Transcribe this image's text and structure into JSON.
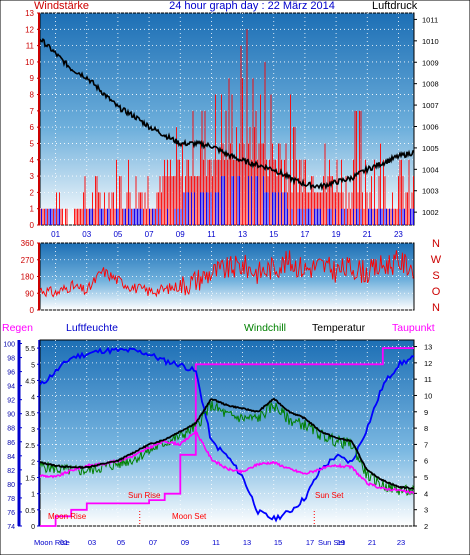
{
  "header": {
    "left_label": "Windstärke",
    "title": "24 hour graph day : 22 März 2014",
    "right_label": "Luftdruck"
  },
  "colors": {
    "wind": "#ff0000",
    "gust": "#ff0000",
    "wind_low": "#0000ff",
    "pressure": "#000000",
    "direction": "#ff0000",
    "humidity": "#0000ff",
    "windchill": "#008000",
    "temperature": "#000000",
    "dewpoint": "#ff00ff",
    "rain": "#ff00ff",
    "frame": "#000000",
    "left_axis": "#cc0000",
    "mid_axis": "#cc0000",
    "bottom_axis": "#0000cc"
  },
  "chart_data": [
    {
      "type": "area",
      "x_ticks": [
        "01",
        "03",
        "05",
        "07",
        "09",
        "11",
        "13",
        "15",
        "17",
        "19",
        "21",
        "23"
      ],
      "y_left_ticks": [
        "0",
        "1",
        "2",
        "3",
        "4",
        "5",
        "6",
        "7",
        "8",
        "9",
        "10",
        "11",
        "12",
        "13"
      ],
      "y_right_ticks": [
        "1002",
        "1003",
        "1004",
        "1005",
        "1006",
        "1007",
        "1008",
        "1009",
        "1010",
        "1011"
      ],
      "ylim_left": [
        0,
        13
      ],
      "ylim_right": [
        1001.4,
        1011.3
      ],
      "pressure": {
        "x": [
          0,
          1,
          2,
          3,
          4,
          5,
          6,
          7,
          8,
          9,
          10,
          11,
          12,
          13,
          14,
          15,
          16,
          17,
          18,
          19,
          20,
          21,
          22,
          23,
          24
        ],
        "values": [
          1010.1,
          1009.4,
          1008.7,
          1008.3,
          1007.6,
          1006.9,
          1006.5,
          1006.0,
          1005.6,
          1005.2,
          1005.2,
          1005.1,
          1004.7,
          1004.4,
          1004.2,
          1004.0,
          1003.6,
          1003.3,
          1003.2,
          1003.4,
          1003.6,
          1004.0,
          1004.3,
          1004.6,
          1004.8
        ]
      },
      "wind": {
        "x": [
          0,
          1,
          2,
          3,
          4,
          5,
          6,
          7,
          8,
          9,
          10,
          11,
          12,
          13,
          14,
          15,
          16,
          17,
          18,
          19,
          20,
          21,
          22,
          23,
          24
        ],
        "low": [
          1,
          1,
          0,
          1,
          1,
          1,
          1,
          1,
          2,
          2,
          3,
          3,
          4,
          4,
          4,
          3,
          2,
          2,
          2,
          2,
          1,
          1,
          1,
          1,
          1
        ],
        "high": [
          2,
          2,
          2,
          3,
          4,
          5,
          5,
          5,
          5,
          6,
          8,
          9,
          10,
          13,
          12,
          11,
          9,
          7,
          6,
          5,
          6,
          11,
          6,
          5,
          4
        ]
      }
    },
    {
      "type": "line",
      "y_left_ticks": [
        "0",
        "90",
        "180",
        "270",
        "360"
      ],
      "y_right_ticks": [
        "N",
        "W",
        "S",
        "O",
        "N"
      ],
      "ylim": [
        0,
        360
      ],
      "direction": {
        "x": [
          0,
          1,
          2,
          3,
          4,
          5,
          6,
          7,
          8,
          9,
          10,
          11,
          12,
          13,
          14,
          15,
          16,
          17,
          18,
          19,
          20,
          21,
          22,
          23,
          24
        ],
        "values": [
          110,
          90,
          130,
          100,
          210,
          160,
          120,
          100,
          110,
          130,
          160,
          200,
          220,
          240,
          200,
          230,
          260,
          220,
          240,
          210,
          230,
          200,
          240,
          260,
          230
        ]
      }
    },
    {
      "type": "line",
      "legend": [
        "Regen",
        "Luftfeuchte",
        "Windchill",
        "Temperatur",
        "Taupunkt"
      ],
      "y_left_rain_ticks": [
        "0",
        "0.5",
        "1",
        "1.5",
        "2",
        "2.5",
        "3",
        "3.5",
        "4",
        "4.5",
        "5",
        "5.5"
      ],
      "y_left_humidity_ticks": [
        "74",
        "76",
        "78",
        "80",
        "82",
        "84",
        "86",
        "88",
        "90",
        "92",
        "94",
        "96",
        "98",
        "100"
      ],
      "y_right_ticks": [
        "2",
        "3",
        "4",
        "5",
        "6",
        "7",
        "8",
        "9",
        "10",
        "11",
        "12",
        "13"
      ],
      "ylim_temp": [
        2,
        13.4
      ],
      "ylim_humidity": [
        74,
        100.5
      ],
      "ylim_rain": [
        0,
        5.75
      ],
      "annotations": {
        "moon_rise": "Moon Rise",
        "sun_rise": "Sun Rise",
        "moon_set": "Moon Set",
        "sun_set": "Sun Set"
      },
      "x_bottom_labels": [
        "Moon Rise",
        "01",
        "03",
        "05",
        "07",
        "09",
        "11",
        "13",
        "15",
        "17",
        "Sun Set",
        "19",
        "21",
        "23"
      ],
      "temperature": {
        "x": [
          0,
          1,
          2,
          3,
          4,
          5,
          6,
          7,
          8,
          9,
          10,
          11,
          12,
          13,
          14,
          15,
          16,
          17,
          18,
          19,
          20,
          21,
          22,
          23,
          24
        ],
        "values": [
          5.9,
          5.7,
          5.6,
          5.6,
          5.8,
          6.0,
          6.5,
          7.0,
          7.3,
          7.8,
          8.3,
          9.8,
          9.4,
          9.2,
          9.0,
          9.8,
          9.0,
          8.6,
          7.8,
          7.4,
          7.2,
          5.4,
          4.8,
          4.4,
          4.3
        ]
      },
      "windchill": {
        "x": [
          0,
          1,
          2,
          3,
          4,
          5,
          6,
          7,
          8,
          9,
          10,
          11,
          12,
          13,
          14,
          15,
          16,
          17,
          18,
          19,
          20,
          21,
          22,
          23,
          24
        ],
        "values": [
          5.7,
          5.5,
          5.4,
          5.4,
          5.6,
          5.8,
          6.1,
          6.6,
          7.1,
          7.5,
          8.1,
          9.4,
          8.8,
          8.6,
          8.6,
          9.4,
          8.5,
          8.2,
          7.6,
          7.2,
          7.0,
          5.1,
          4.5,
          4.2,
          4.1
        ]
      },
      "dewpoint": {
        "x": [
          0,
          1,
          2,
          3,
          4,
          5,
          6,
          7,
          8,
          9,
          10,
          11,
          12,
          13,
          14,
          15,
          16,
          17,
          18,
          19,
          20,
          21,
          22,
          23,
          24
        ],
        "values": [
          5.1,
          5.0,
          5.4,
          5.7,
          5.8,
          6.0,
          6.3,
          6.8,
          7.2,
          7.0,
          7.8,
          6.1,
          5.5,
          5.3,
          5.8,
          5.9,
          5.5,
          5.2,
          5.5,
          5.7,
          5.6,
          4.6,
          4.3,
          4.2,
          4.0
        ]
      },
      "humidity": {
        "x": [
          0,
          1,
          2,
          3,
          4,
          5,
          6,
          7,
          8,
          9,
          10,
          11,
          12,
          13,
          14,
          15,
          16,
          17,
          18,
          19,
          20,
          21,
          22,
          23,
          24
        ],
        "values": [
          94,
          96,
          98,
          98.5,
          99,
          99,
          99,
          98.5,
          97.5,
          97,
          96,
          86,
          84,
          81,
          76,
          75,
          76,
          78,
          82,
          84,
          83,
          88,
          94,
          97,
          98
        ]
      },
      "rain": {
        "x": [
          0,
          1,
          2,
          3,
          4,
          5,
          6,
          7,
          8,
          9,
          10,
          11,
          12,
          13,
          14,
          15,
          16,
          17,
          18,
          19,
          20,
          21,
          22,
          23,
          24
        ],
        "values": [
          0,
          0.3,
          0.5,
          0.7,
          0.7,
          0.7,
          0.7,
          0.8,
          1.0,
          2.2,
          5.0,
          5.0,
          5.0,
          5.0,
          5.0,
          5.0,
          5.0,
          5.0,
          5.0,
          5.0,
          5.0,
          5.0,
          5.5,
          5.5,
          5.5
        ]
      }
    }
  ]
}
